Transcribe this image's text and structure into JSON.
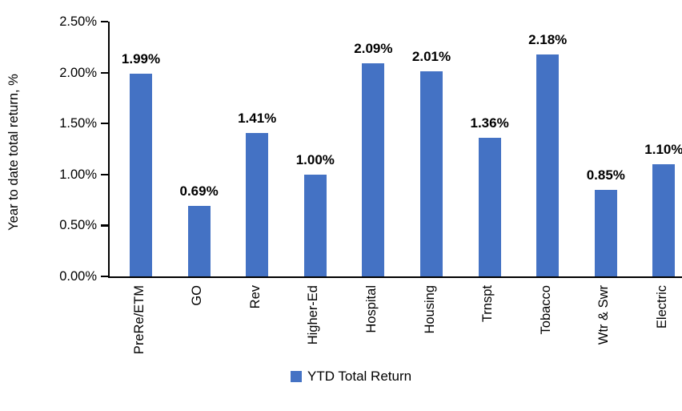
{
  "chart_data": {
    "type": "bar",
    "title": "",
    "categories": [
      "PreRe/ETM",
      "GO",
      "Rev",
      "Higher-Ed",
      "Hospital",
      "Housing",
      "Trnspt",
      "Tobacco",
      "Wtr & Swr",
      "Electric"
    ],
    "series": [
      {
        "name": "YTD Total Return",
        "values": [
          1.99,
          0.69,
          1.41,
          1.0,
          2.09,
          2.01,
          1.36,
          2.18,
          0.85,
          1.1
        ],
        "value_labels": [
          "1.99%",
          "0.69%",
          "1.41%",
          "1.00%",
          "2.09%",
          "2.01%",
          "1.36%",
          "2.18%",
          "0.85%",
          "1.10%"
        ]
      }
    ],
    "xlabel": "",
    "ylabel": "Year to date total return, %",
    "ylim": [
      0,
      2.5
    ],
    "ytick_labels_bottom_to_top": [
      "0.00%",
      "0.50%",
      "1.00%",
      "1.50%",
      "2.00%",
      "2.50%"
    ],
    "grid": false,
    "legend": {
      "position": "bottom-center",
      "entries": [
        "YTD Total Return"
      ]
    },
    "colors": {
      "bar": "#4472C4",
      "axis": "#000000",
      "text": "#000000",
      "background": "#FFFFFF"
    }
  }
}
